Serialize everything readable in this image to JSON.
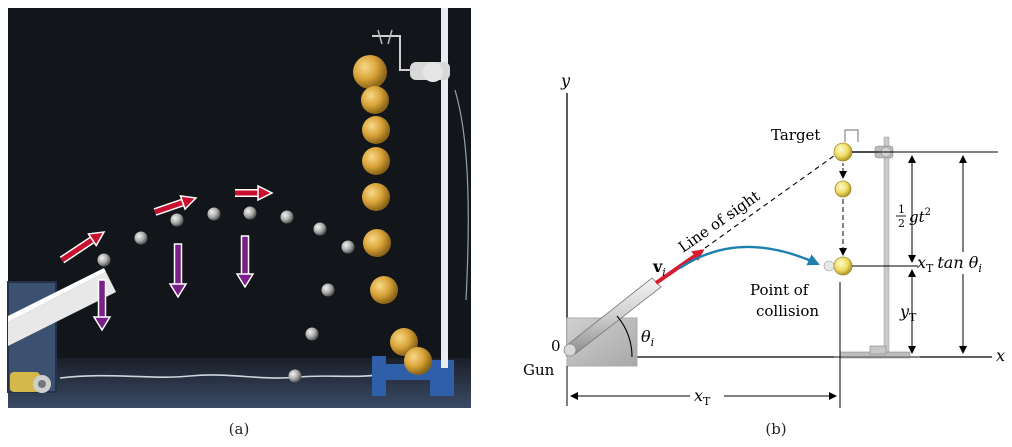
{
  "panel_a": {
    "label": "(a)",
    "colors": {
      "background": "#111418",
      "gray_ball": "#b8b8b8",
      "yellow_ball": "#e8b83c",
      "velocity_arrow": "#c8102e",
      "gravity_arrow": "#7a1f8a"
    }
  },
  "panel_b": {
    "label": "(b)",
    "axis_y": "y",
    "axis_x": "x",
    "origin": "0",
    "gun": "Gun",
    "target": "Target",
    "line_of_sight": "Line of sight",
    "velocity": {
      "symbol": "v",
      "subscript": "i"
    },
    "angle": {
      "symbol": "θ",
      "subscript": "i"
    },
    "point_of_collision": [
      "Point of",
      "collision"
    ],
    "half_g_t2": {
      "num": "1",
      "den": "2",
      "expr": "gt",
      "sup": "2"
    },
    "xt_tan": {
      "x": "x",
      "sub": "T",
      "rest": "tan θ",
      "sub2": "i"
    },
    "yt": {
      "y": "y",
      "sub": "T"
    },
    "xt": {
      "x": "x",
      "sub": "T"
    },
    "colors": {
      "trajectory": "#1b7fb0",
      "velocity_arrow": "#d81b30",
      "ball": "#f0df6a"
    }
  }
}
